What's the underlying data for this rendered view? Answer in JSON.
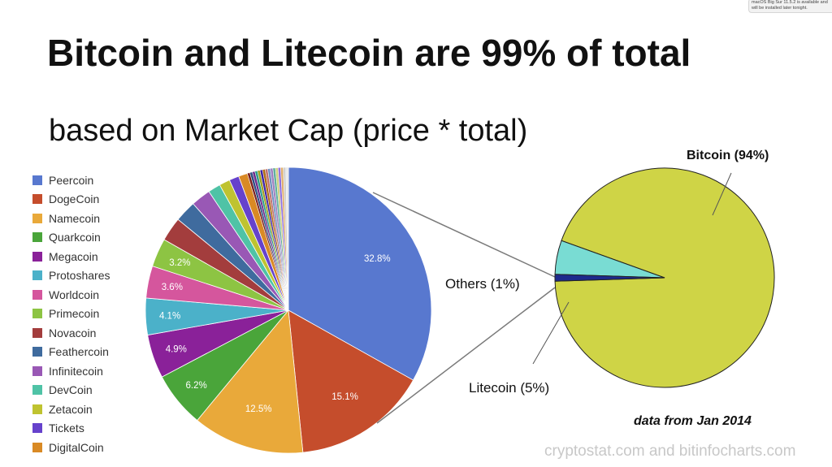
{
  "notification": "macOS Big Sur 11.5.2 is available and will be installed later tonight.",
  "slide": {
    "title": "Bitcoin and Litecoin are 99% of total",
    "subtitle": "based on Market Cap (price * total)",
    "date_note": "data from Jan 2014",
    "source": "cryptostat.com and bitinfocharts.com"
  },
  "chart_data": [
    {
      "type": "pie",
      "legend_position": "left",
      "series": [
        {
          "name": "Peercoin",
          "value": 32.8,
          "label": "32.8%",
          "color": "#5878cf"
        },
        {
          "name": "DogeCoin",
          "value": 15.1,
          "label": "15.1%",
          "color": "#c54d2c"
        },
        {
          "name": "Namecoin",
          "value": 12.5,
          "label": "12.5%",
          "color": "#e9a93a"
        },
        {
          "name": "Quarkcoin",
          "value": 6.2,
          "label": "6.2%",
          "color": "#4aa53a"
        },
        {
          "name": "Megacoin",
          "value": 4.9,
          "label": "4.9%",
          "color": "#8a2199"
        },
        {
          "name": "Protoshares",
          "value": 4.1,
          "label": "4.1%",
          "color": "#4bb1c9"
        },
        {
          "name": "Worldcoin",
          "value": 3.6,
          "label": "3.6%",
          "color": "#d5569d"
        },
        {
          "name": "Primecoin",
          "value": 3.2,
          "label": "3.2%",
          "color": "#8dc443"
        },
        {
          "name": "Novacoin",
          "value": 2.7,
          "label": "",
          "color": "#a33d3d"
        },
        {
          "name": "Feathercoin",
          "value": 2.4,
          "label": "",
          "color": "#3f6b9e"
        },
        {
          "name": "Infinitecoin",
          "value": 2.2,
          "label": "",
          "color": "#9958b5"
        },
        {
          "name": "DevCoin",
          "value": 1.4,
          "label": "",
          "color": "#4fc3a6"
        },
        {
          "name": "Zetacoin",
          "value": 1.2,
          "label": "",
          "color": "#bfc330"
        },
        {
          "name": "Tickets",
          "value": 1.1,
          "label": "",
          "color": "#6642cc"
        },
        {
          "name": "DigitalCoin",
          "value": 1.0,
          "label": "",
          "color": "#d98a25"
        }
      ],
      "others": {
        "value": 4.6,
        "colors": [
          "#7a1f1f",
          "#2d4f86",
          "#6f2b8c",
          "#2b9c8a",
          "#a1a020",
          "#3d24a8",
          "#b06d12",
          "#c07070",
          "#7090c0",
          "#a080c0",
          "#60b0a0",
          "#d0d080",
          "#9070e0",
          "#e0b070",
          "#d0d0d0",
          "#e8e8e8"
        ]
      }
    },
    {
      "type": "pie",
      "series": [
        {
          "name": "Bitcoin",
          "value": 94,
          "label": "Bitcoin (94%)",
          "color": "#cfd446"
        },
        {
          "name": "Litecoin",
          "value": 5,
          "label": "Litecoin (5%)",
          "color": "#79dcd3"
        },
        {
          "name": "Others",
          "value": 1,
          "label": "Others (1%)",
          "color": "#1d2a8c"
        }
      ]
    }
  ]
}
